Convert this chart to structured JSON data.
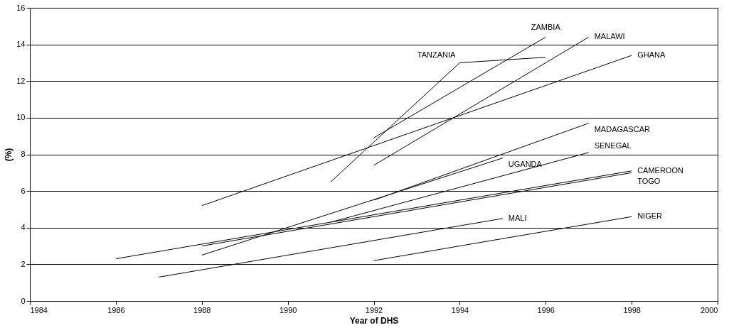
{
  "chart_data": {
    "type": "line",
    "xlabel": "Year of DHS",
    "ylabel": "(%)",
    "xlim": [
      1984,
      2000
    ],
    "xticks": [
      1984,
      1986,
      1988,
      1990,
      1992,
      1994,
      1996,
      1998,
      2000
    ],
    "ylim": [
      0,
      16
    ],
    "yticks": [
      0,
      2,
      4,
      6,
      8,
      10,
      12,
      14,
      16
    ],
    "grid": "y",
    "line_style": "solid",
    "series": [
      {
        "name": "ZAMBIA",
        "color": "#000000",
        "x": [
          1992,
          1996
        ],
        "values": [
          8.9,
          14.4
        ]
      },
      {
        "name": "MALAWI",
        "color": "#000000",
        "x": [
          1992,
          1997
        ],
        "values": [
          7.4,
          14.4
        ]
      },
      {
        "name": "TANZANIA",
        "color": "#000000",
        "x": [
          1991,
          1994,
          1996
        ],
        "values": [
          6.5,
          13.0,
          13.3
        ]
      },
      {
        "name": "GHANA",
        "color": "#000000",
        "x": [
          1988,
          1998
        ],
        "values": [
          5.2,
          13.4
        ]
      },
      {
        "name": "MADAGASCAR",
        "color": "#000000",
        "x": [
          1992,
          1997
        ],
        "values": [
          5.5,
          9.7
        ]
      },
      {
        "name": "UGANDA",
        "color": "#000000",
        "x": [
          1988,
          1995
        ],
        "values": [
          2.5,
          7.8
        ]
      },
      {
        "name": "SENEGAL",
        "color": "#000000",
        "x": [
          1991,
          1997
        ],
        "values": [
          4.3,
          8.1
        ]
      },
      {
        "name": "CAMEROON",
        "color": "#000000",
        "x": [
          1986,
          1998
        ],
        "values": [
          2.3,
          7.1
        ]
      },
      {
        "name": "TOGO",
        "color": "#000000",
        "x": [
          1988,
          1998
        ],
        "values": [
          3.0,
          7.0
        ]
      },
      {
        "name": "MALI",
        "color": "#000000",
        "x": [
          1987,
          1995
        ],
        "values": [
          1.3,
          4.5
        ]
      },
      {
        "name": "NIGER",
        "color": "#000000",
        "x": [
          1992,
          1998
        ],
        "values": [
          2.2,
          4.6
        ]
      }
    ]
  }
}
